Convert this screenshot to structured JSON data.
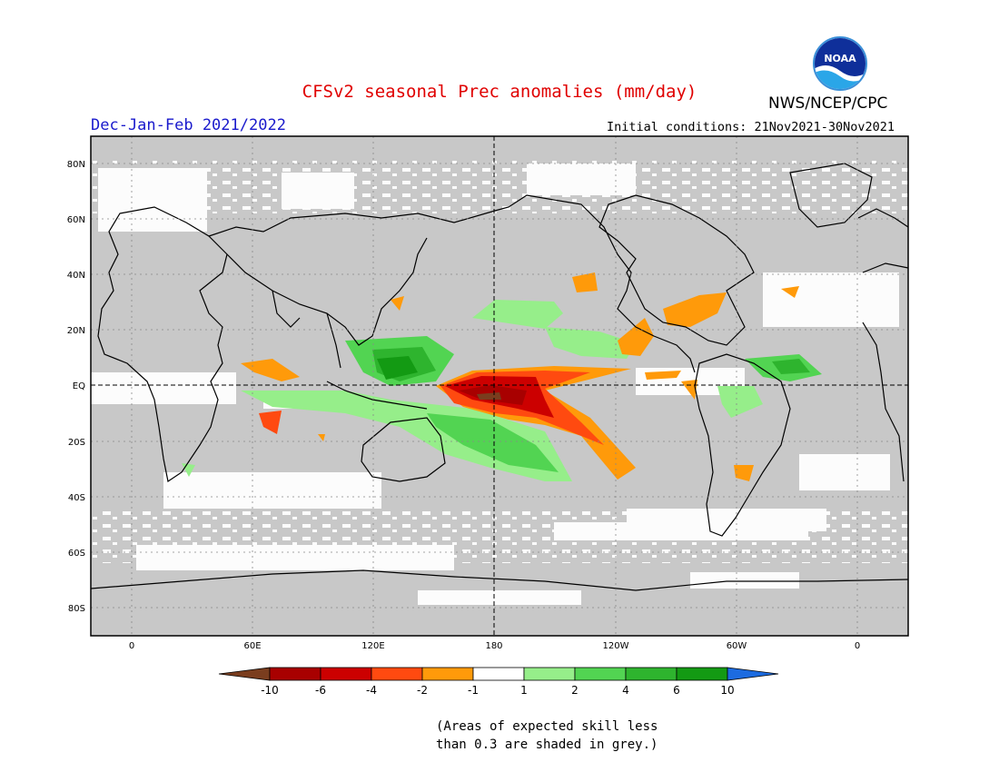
{
  "header": {
    "title": "CFSv2 seasonal Prec anomalies (mm/day)",
    "agency": "NWS/NCEP/CPC",
    "season": "Dec-Jan-Feb 2021/2022",
    "initial_conditions": "Initial conditions: 21Nov2021-30Nov2021",
    "logo_text": "NOAA"
  },
  "map": {
    "lat_labels": [
      "80N",
      "60N",
      "40N",
      "20N",
      "EQ",
      "20S",
      "40S",
      "60S",
      "80S"
    ],
    "lon_labels": [
      "0",
      "60E",
      "120E",
      "180",
      "120W",
      "60W",
      "0"
    ],
    "background_color": "#c8c8c8"
  },
  "colorbar": {
    "labels": [
      "-10",
      "-6",
      "-4",
      "-2",
      "-1",
      "1",
      "2",
      "4",
      "6",
      "10"
    ],
    "colors": [
      "#7a3d1e",
      "#a80000",
      "#cc0000",
      "#ff4a10",
      "#ff9a0a",
      "#ffffff",
      "#96ee8a",
      "#52d452",
      "#2eb42e",
      "#139a13",
      "#1c6be0"
    ]
  },
  "footnote": {
    "line1": "(Areas of expected skill less",
    "line2": "than 0.3 are shaded in grey.)"
  }
}
